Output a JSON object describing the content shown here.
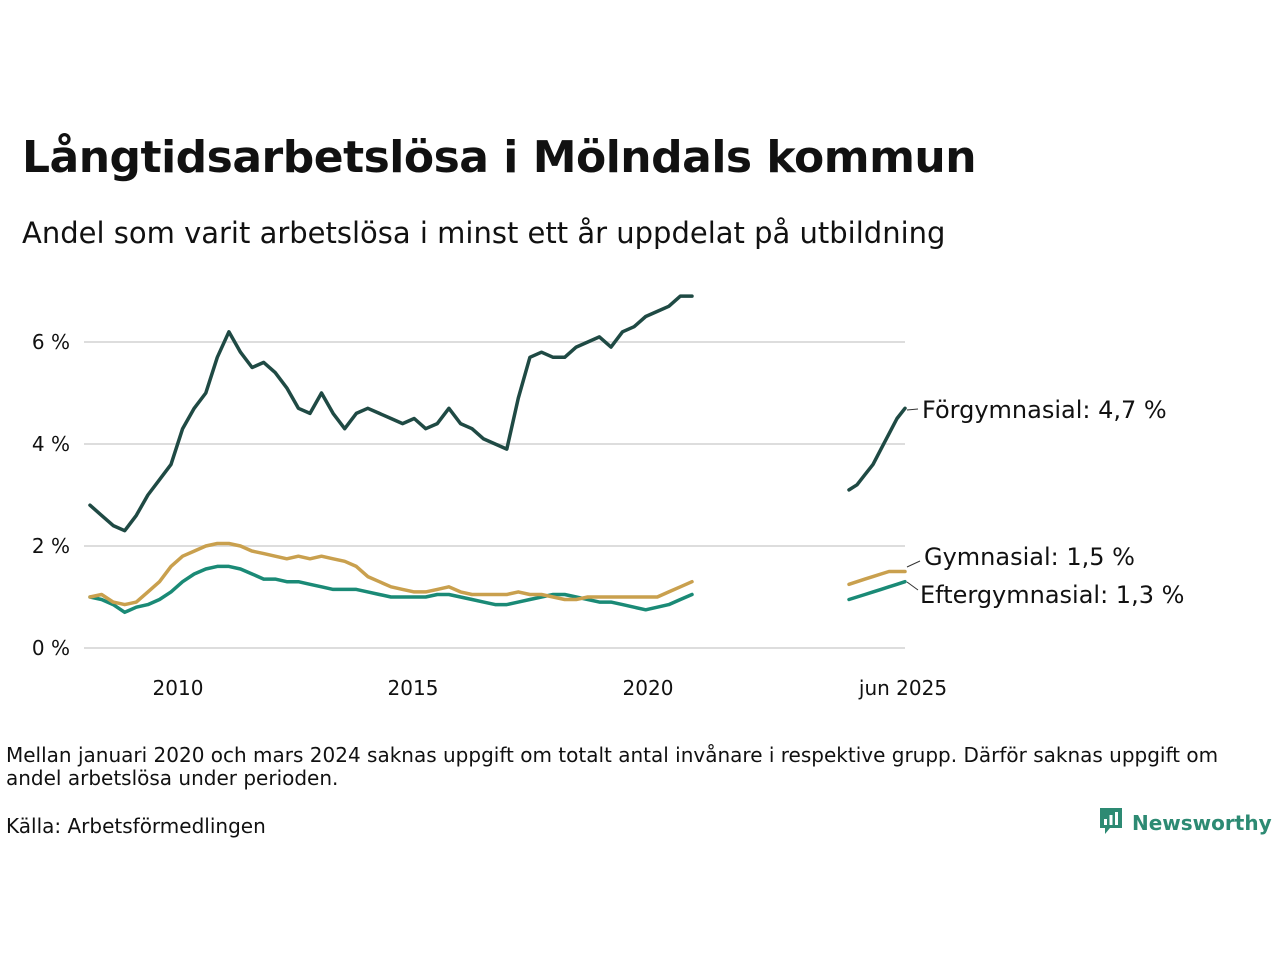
{
  "title": "Långtidsarbetslösa i Mölndals kommun",
  "subtitle": "Andel som varit arbetslösa i minst ett år uppdelat på utbildning",
  "note": "Mellan januari 2020 och mars 2024 saknas uppgift om totalt antal invånare i respektive grupp. Därför saknas uppgift om andel arbetslösa under perioden.",
  "source": "Källa: Arbetsförmedlingen",
  "brand": "Newsworthy",
  "colors": {
    "forgymnasial": "#1f4a44",
    "gymnasial": "#c9a04e",
    "eftergymnasial": "#1a8a76",
    "grid": "#dddddd",
    "brand": "#2d8a73"
  },
  "chart_data": {
    "type": "line",
    "title": "Långtidsarbetslösa i Mölndals kommun",
    "xlabel": "",
    "ylabel": "",
    "ylim": [
      0,
      7
    ],
    "yticks": [
      0,
      2,
      4,
      6
    ],
    "ytick_labels": [
      "0 %",
      "2 %",
      "4 %",
      "6 %"
    ],
    "xtick_labels": [
      "2010",
      "2015",
      "2020",
      "jun 2025"
    ],
    "grid": "horizontal",
    "legend": "direct labels at line ends",
    "gap_note": "Series break between 2020 and 2024",
    "segment1_dates": [
      "2008-01",
      "2008-04",
      "2008-07",
      "2008-10",
      "2009-01",
      "2009-04",
      "2009-07",
      "2009-10",
      "2010-01",
      "2010-04",
      "2010-07",
      "2010-10",
      "2011-01",
      "2011-04",
      "2011-07",
      "2011-10",
      "2012-01",
      "2012-04",
      "2012-07",
      "2012-10",
      "2013-01",
      "2013-04",
      "2013-07",
      "2013-10",
      "2014-01",
      "2014-04",
      "2014-07",
      "2014-10",
      "2015-01",
      "2015-04",
      "2015-07",
      "2015-10",
      "2016-01",
      "2016-04",
      "2016-07",
      "2016-10",
      "2017-01",
      "2017-04",
      "2017-07",
      "2017-10",
      "2018-01",
      "2018-04",
      "2018-07",
      "2018-10",
      "2019-01",
      "2019-04",
      "2019-07",
      "2019-10",
      "2020-01",
      "2020-04",
      "2020-07",
      "2020-10",
      "2021-01"
    ],
    "segment2_dates": [
      "2024-04",
      "2024-06",
      "2024-08",
      "2024-10",
      "2024-12",
      "2025-02",
      "2025-04",
      "2025-06"
    ],
    "series": [
      {
        "name": "Förgymnasial",
        "end_label": "Förgymnasial: 4,7 %",
        "color": "#1f4a44",
        "segment1": [
          2.8,
          2.6,
          2.4,
          2.3,
          2.6,
          3.0,
          3.3,
          3.6,
          4.3,
          4.7,
          5.0,
          5.7,
          6.2,
          5.8,
          5.5,
          5.6,
          5.4,
          5.1,
          4.7,
          4.6,
          5.0,
          4.6,
          4.3,
          4.6,
          4.7,
          4.6,
          4.5,
          4.4,
          4.5,
          4.3,
          4.4,
          4.7,
          4.4,
          4.3,
          4.1,
          4.0,
          3.9,
          4.9,
          5.7,
          5.8,
          5.7,
          5.7,
          5.9,
          6.0,
          6.1,
          5.9,
          6.2,
          6.3,
          6.5,
          6.6,
          6.7,
          6.9,
          6.9
        ],
        "segment2": [
          3.1,
          3.2,
          3.4,
          3.6,
          3.9,
          4.2,
          4.5,
          4.7
        ]
      },
      {
        "name": "Gymnasial",
        "end_label": "Gymnasial: 1,5 %",
        "color": "#c9a04e",
        "segment1": [
          1.0,
          1.05,
          0.9,
          0.85,
          0.9,
          1.1,
          1.3,
          1.6,
          1.8,
          1.9,
          2.0,
          2.05,
          2.05,
          2.0,
          1.9,
          1.85,
          1.8,
          1.75,
          1.8,
          1.75,
          1.8,
          1.75,
          1.7,
          1.6,
          1.4,
          1.3,
          1.2,
          1.15,
          1.1,
          1.1,
          1.15,
          1.2,
          1.1,
          1.05,
          1.05,
          1.05,
          1.05,
          1.1,
          1.05,
          1.05,
          1.0,
          0.95,
          0.95,
          1.0,
          1.0,
          1.0,
          1.0,
          1.0,
          1.0,
          1.0,
          1.1,
          1.2,
          1.3
        ],
        "segment2": [
          1.25,
          1.3,
          1.35,
          1.4,
          1.45,
          1.5,
          1.5,
          1.5
        ]
      },
      {
        "name": "Eftergymnasial",
        "end_label": "Eftergymnasial: 1,3 %",
        "color": "#1a8a76",
        "segment1": [
          1.0,
          0.95,
          0.85,
          0.7,
          0.8,
          0.85,
          0.95,
          1.1,
          1.3,
          1.45,
          1.55,
          1.6,
          1.6,
          1.55,
          1.45,
          1.35,
          1.35,
          1.3,
          1.3,
          1.25,
          1.2,
          1.15,
          1.15,
          1.15,
          1.1,
          1.05,
          1.0,
          1.0,
          1.0,
          1.0,
          1.05,
          1.05,
          1.0,
          0.95,
          0.9,
          0.85,
          0.85,
          0.9,
          0.95,
          1.0,
          1.05,
          1.05,
          1.0,
          0.95,
          0.9,
          0.9,
          0.85,
          0.8,
          0.75,
          0.8,
          0.85,
          0.95,
          1.05
        ],
        "segment2": [
          0.95,
          1.0,
          1.05,
          1.1,
          1.15,
          1.2,
          1.25,
          1.3
        ]
      }
    ]
  }
}
